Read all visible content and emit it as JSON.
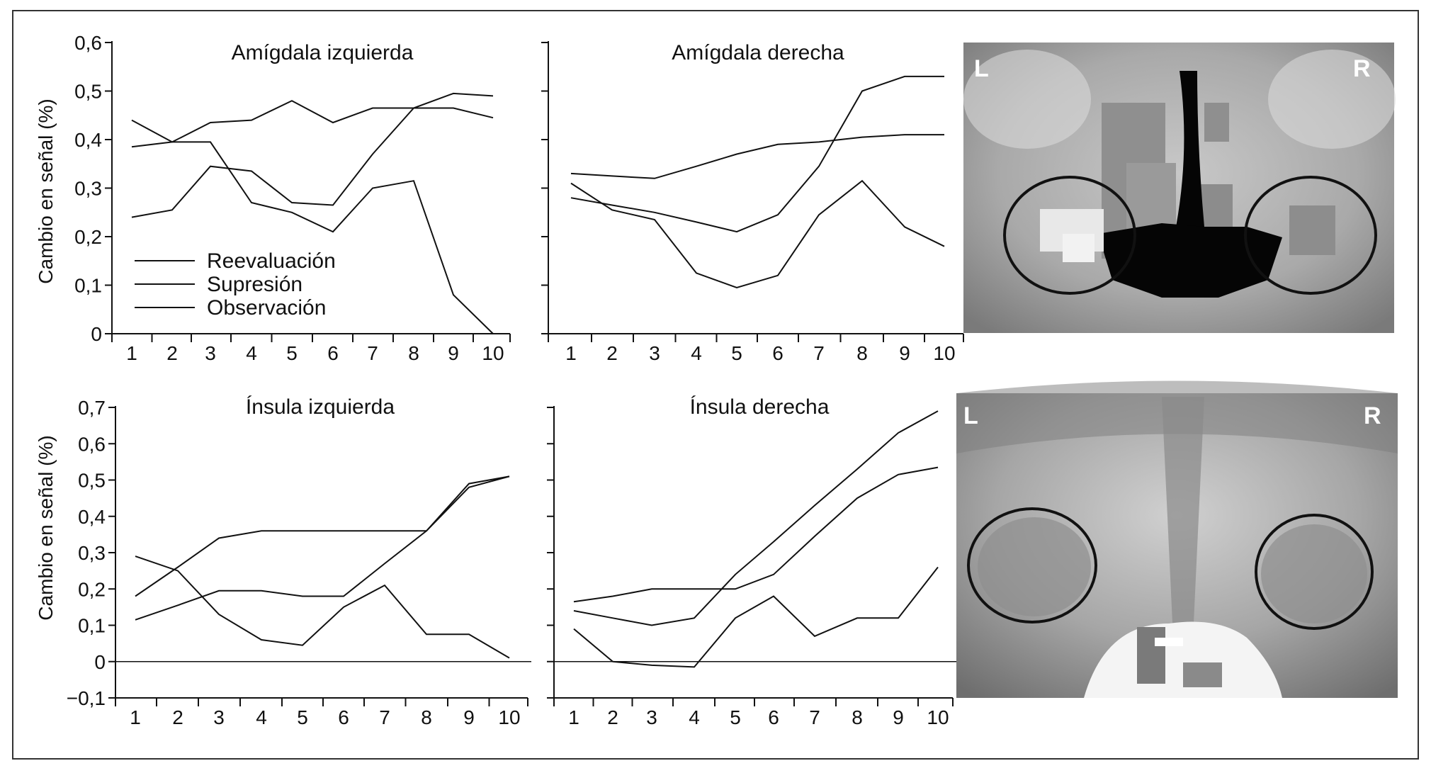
{
  "chart_data": [
    {
      "type": "line",
      "title": "Amígdala izquierda",
      "ylabel": "Cambio en señal (%)",
      "x": [
        1,
        2,
        3,
        4,
        5,
        6,
        7,
        8,
        9,
        10
      ],
      "ylim": [
        0,
        0.6
      ],
      "yticks": [
        "0",
        "0,1",
        "0,2",
        "0,3",
        "0,4",
        "0,5",
        "0,6"
      ],
      "yticks_values": [
        0,
        0.1,
        0.2,
        0.3,
        0.4,
        0.5,
        0.6
      ],
      "series": [
        {
          "name": "Reevaluación",
          "values": [
            0.385,
            0.395,
            0.435,
            0.44,
            0.48,
            0.435,
            0.465,
            0.465,
            0.495,
            0.49
          ]
        },
        {
          "name": "Supresión",
          "values": [
            0.44,
            0.395,
            0.395,
            0.27,
            0.25,
            0.21,
            0.3,
            0.315,
            0.08,
            0.0
          ]
        },
        {
          "name": "Observación",
          "values": [
            0.24,
            0.255,
            0.345,
            0.335,
            0.27,
            0.265,
            0.37,
            0.465,
            0.465,
            0.445
          ]
        }
      ],
      "legend": [
        "Reevaluación",
        "Supresión",
        "Observación"
      ]
    },
    {
      "type": "line",
      "title": "Amígdala derecha",
      "x": [
        1,
        2,
        3,
        4,
        5,
        6,
        7,
        8,
        9,
        10
      ],
      "ylim": [
        0,
        0.6
      ],
      "series": [
        {
          "values": [
            0.33,
            0.325,
            0.32,
            0.345,
            0.37,
            0.39,
            0.395,
            0.405,
            0.41,
            0.41
          ]
        },
        {
          "values": [
            0.31,
            0.255,
            0.235,
            0.125,
            0.095,
            0.12,
            0.245,
            0.315,
            0.22,
            0.18
          ]
        },
        {
          "values": [
            0.28,
            0.265,
            0.25,
            0.23,
            0.21,
            0.245,
            0.345,
            0.5,
            0.53,
            0.53
          ]
        }
      ]
    },
    {
      "type": "line",
      "title": "Ínsula izquierda",
      "ylabel": "Cambio en señal (%)",
      "x": [
        1,
        2,
        3,
        4,
        5,
        6,
        7,
        8,
        9,
        10
      ],
      "ylim": [
        -0.1,
        0.7
      ],
      "yticks": [
        "−0,1",
        "0",
        "0,1",
        "0,2",
        "0,3",
        "0,4",
        "0,5",
        "0,6",
        "0,7"
      ],
      "yticks_values": [
        -0.1,
        0,
        0.1,
        0.2,
        0.3,
        0.4,
        0.5,
        0.6,
        0.7
      ],
      "series": [
        {
          "values": [
            0.18,
            0.26,
            0.34,
            0.36,
            0.36,
            0.36,
            0.36,
            0.36,
            0.49,
            0.51
          ]
        },
        {
          "values": [
            0.29,
            0.25,
            0.13,
            0.06,
            0.045,
            0.15,
            0.21,
            0.075,
            0.075,
            0.01
          ]
        },
        {
          "values": [
            0.115,
            0.155,
            0.195,
            0.195,
            0.18,
            0.18,
            0.27,
            0.36,
            0.48,
            0.51
          ]
        }
      ]
    },
    {
      "type": "line",
      "title": "Ínsula derecha",
      "x": [
        1,
        2,
        3,
        4,
        5,
        6,
        7,
        8,
        9,
        10
      ],
      "ylim": [
        -0.1,
        0.7
      ],
      "series": [
        {
          "values": [
            0.165,
            0.18,
            0.2,
            0.2,
            0.2,
            0.24,
            0.345,
            0.45,
            0.515,
            0.535
          ]
        },
        {
          "values": [
            0.14,
            0.12,
            0.1,
            0.12,
            0.24,
            0.33,
            0.43,
            0.53,
            0.63,
            0.69
          ]
        },
        {
          "values": [
            0.09,
            0.0,
            -0.01,
            -0.015,
            0.12,
            0.18,
            0.07,
            0.12,
            0.12,
            0.26
          ]
        }
      ]
    }
  ],
  "images": [
    {
      "left_label": "L",
      "right_label": "R"
    },
    {
      "left_label": "L",
      "right_label": "R"
    }
  ]
}
